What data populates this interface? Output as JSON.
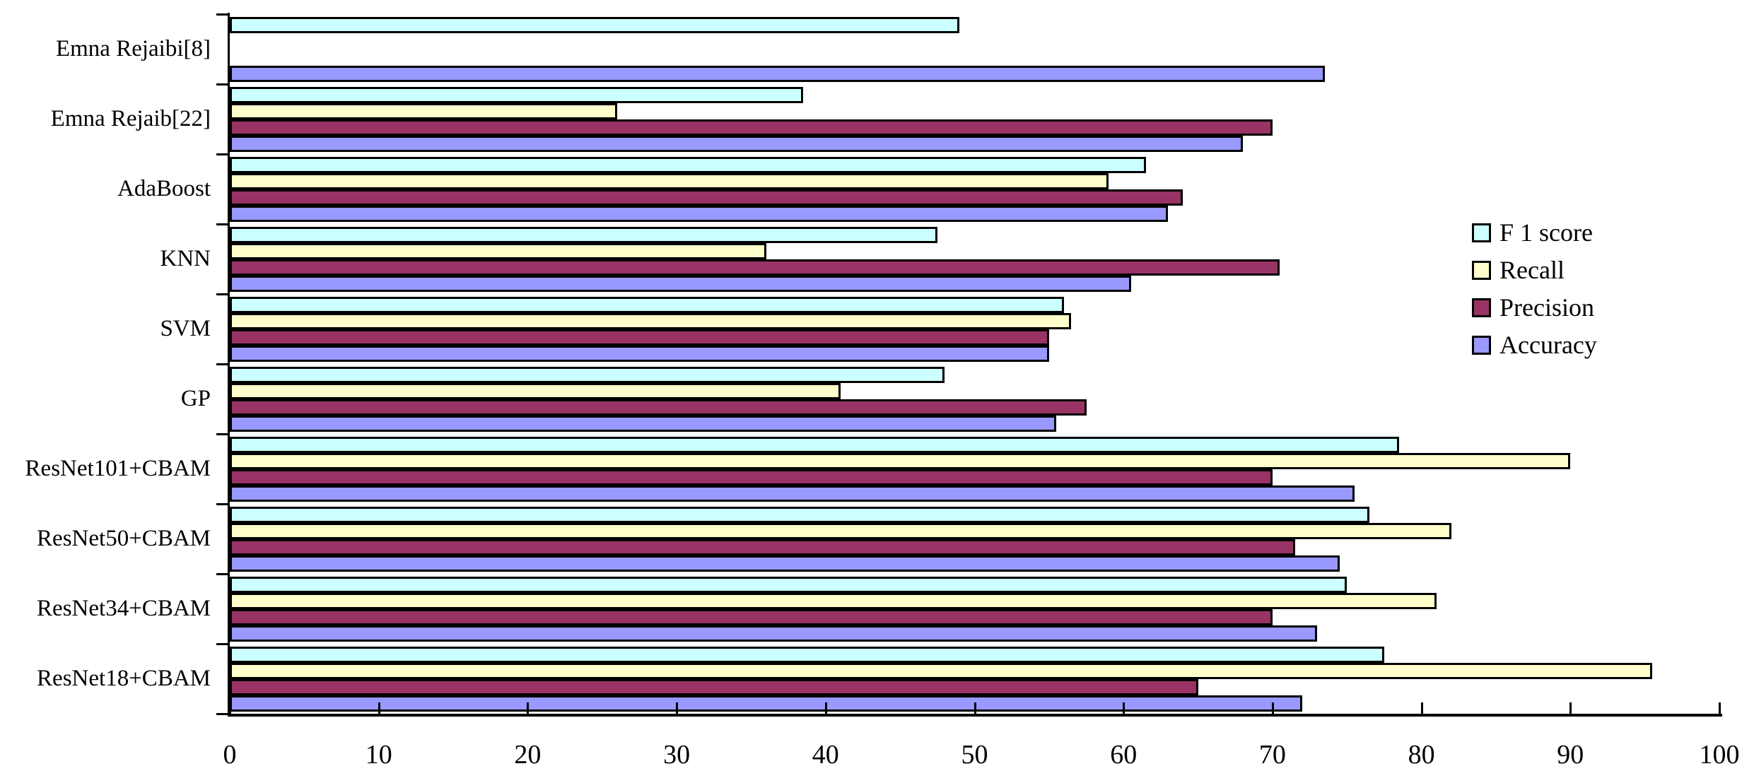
{
  "chart_data": {
    "type": "bar",
    "orientation": "horizontal",
    "title": "",
    "xlabel": "",
    "ylabel": "",
    "xlim": [
      0,
      100
    ],
    "x_ticks": [
      0,
      10,
      20,
      30,
      40,
      50,
      60,
      70,
      80,
      90,
      100
    ],
    "grid": false,
    "legend_position": "right-middle",
    "bar_border_color": "#000000",
    "categories": [
      "Emna Rejaibi[8]",
      "Emna Rejaib[22]",
      "AdaBoost",
      "KNN",
      "SVM",
      "GP",
      "ResNet101+CBAM",
      "ResNet50+CBAM",
      "ResNet34+CBAM",
      "ResNet18+CBAM"
    ],
    "series": [
      {
        "name": "F 1 score",
        "color": "#CCFFFF",
        "values": [
          49,
          38.5,
          61.5,
          47.5,
          56,
          48,
          78.5,
          76.5,
          75,
          77.5
        ]
      },
      {
        "name": "Recall",
        "color": "#FFFFCC",
        "values": [
          null,
          26,
          59,
          36,
          56.5,
          41,
          90,
          82,
          81,
          95.5
        ]
      },
      {
        "name": "Precision",
        "color": "#993366",
        "values": [
          null,
          70,
          64,
          70.5,
          55,
          57.5,
          70,
          71.5,
          70,
          65
        ]
      },
      {
        "name": "Accuracy",
        "color": "#9999FF",
        "values": [
          73.5,
          68,
          63,
          60.5,
          55,
          55.5,
          75.5,
          74.5,
          73,
          72
        ]
      }
    ]
  }
}
